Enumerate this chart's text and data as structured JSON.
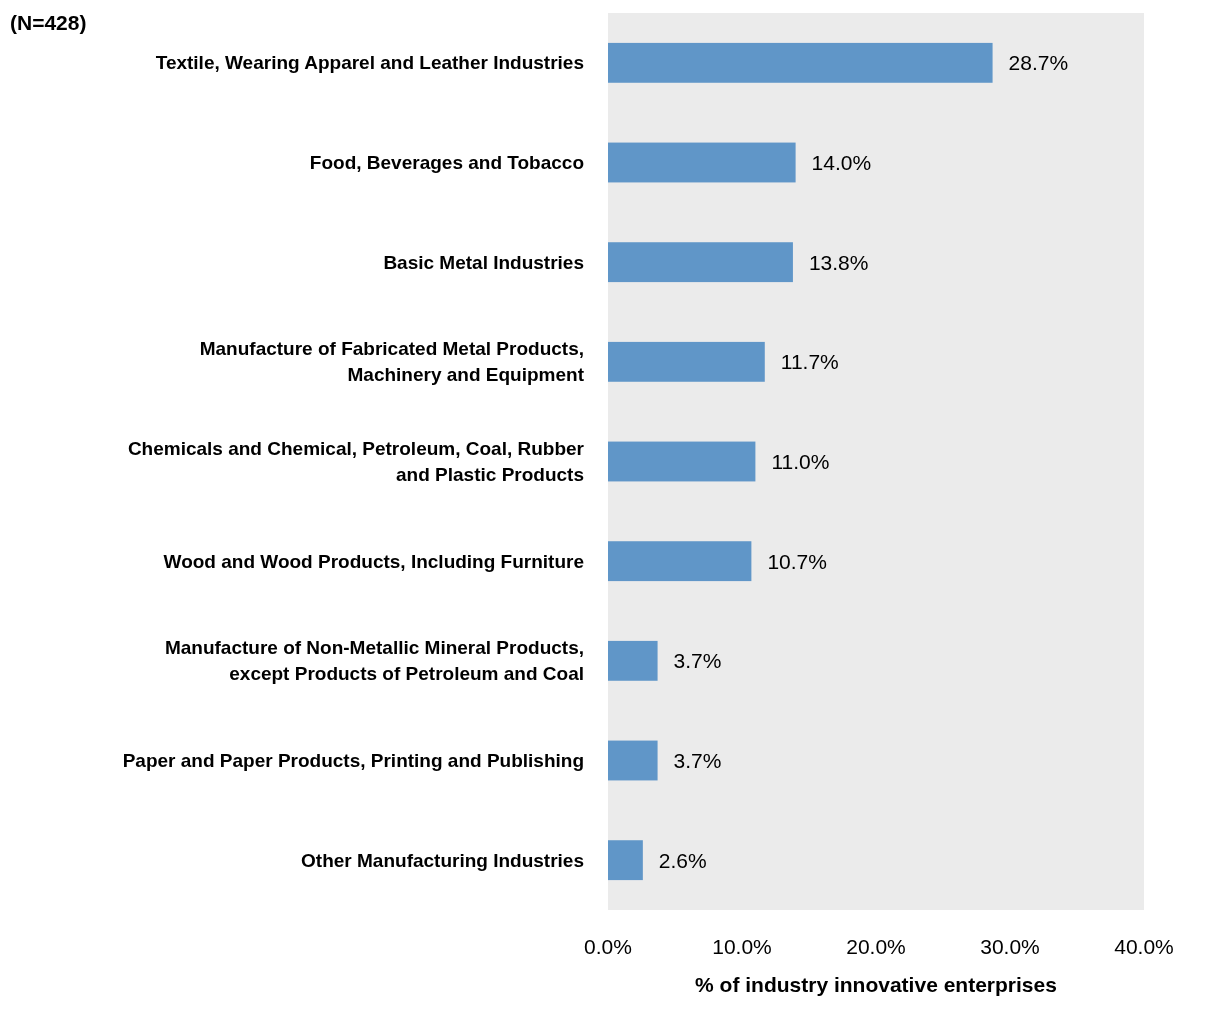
{
  "chart_data": {
    "type": "bar",
    "orientation": "horizontal",
    "xlabel": "% of industry innovative enterprises",
    "annotations": [
      "(N=428)"
    ],
    "categories": [
      "Textile, Wearing Apparel and Leather Industries",
      "Food, Beverages and Tobacco",
      "Basic Metal Industries",
      "Manufacture of Fabricated Metal Products, Machinery and Equipment",
      "Chemicals and Chemical, Petroleum, Coal, Rubber and Plastic Products",
      "Wood and Wood Products, Including Furniture",
      "Manufacture of Non-Metallic Mineral Products, except Products of Petroleum and Coal",
      "Paper and Paper Products, Printing and Publishing",
      "Other Manufacturing Industries"
    ],
    "values": [
      28.7,
      14.0,
      13.8,
      11.7,
      11.0,
      10.7,
      3.7,
      3.7,
      2.6
    ],
    "value_labels": [
      "28.7%",
      "14.0%",
      "13.8%",
      "11.7%",
      "11.0%",
      "10.7%",
      "3.7%",
      "3.7%",
      "2.6%"
    ],
    "color": "#6096c8",
    "xlim": [
      0,
      40
    ],
    "xticks": [
      {
        "value": 0,
        "label": "0.0%"
      },
      {
        "value": 10,
        "label": "10.0%"
      },
      {
        "value": 20,
        "label": "20.0%"
      },
      {
        "value": 30,
        "label": "30.0%"
      },
      {
        "value": 40,
        "label": "40.0%"
      }
    ],
    "grid": false
  }
}
